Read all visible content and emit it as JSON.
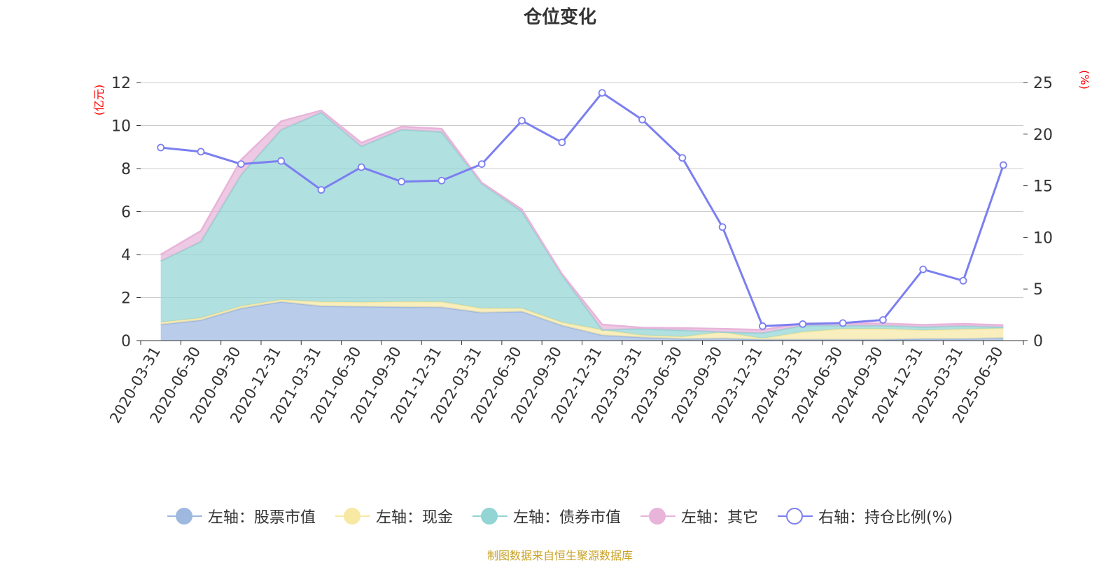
{
  "chart_data": {
    "type": "area",
    "title": "仓位变化",
    "left_axis_unit": "(亿元)",
    "right_axis_unit": "(%)",
    "left_ylim": [
      0,
      12
    ],
    "left_yticks": [
      0,
      2,
      4,
      6,
      8,
      10,
      12
    ],
    "right_ylim": [
      0,
      25
    ],
    "right_yticks": [
      0,
      5,
      10,
      15,
      20,
      25
    ],
    "grid": true,
    "legend_position": "bottom",
    "categories": [
      "2020-03-31",
      "2020-06-30",
      "2020-09-30",
      "2020-12-31",
      "2021-03-31",
      "2021-06-30",
      "2021-09-30",
      "2021-12-31",
      "2022-03-31",
      "2022-06-30",
      "2022-09-30",
      "2022-12-31",
      "2023-03-31",
      "2023-06-30",
      "2023-09-30",
      "2023-12-31",
      "2024-03-31",
      "2024-06-30",
      "2024-09-30",
      "2024-12-31",
      "2025-03-31",
      "2025-06-30"
    ],
    "series": [
      {
        "name": "左轴：股票市值",
        "axis": "left",
        "kind": "stacked-area",
        "color": "#9eb8e0",
        "values": [
          0.75,
          0.95,
          1.5,
          1.8,
          1.6,
          1.58,
          1.56,
          1.55,
          1.3,
          1.35,
          0.7,
          0.25,
          0.15,
          0.08,
          0.1,
          0.05,
          0.05,
          0.05,
          0.05,
          0.08,
          0.08,
          0.12
        ]
      },
      {
        "name": "左轴：现金",
        "axis": "left",
        "kind": "stacked-area",
        "color": "#f7e8a3",
        "values": [
          0.1,
          0.1,
          0.1,
          0.1,
          0.2,
          0.2,
          0.25,
          0.25,
          0.2,
          0.15,
          0.15,
          0.25,
          0.1,
          0.1,
          0.3,
          0.05,
          0.35,
          0.5,
          0.5,
          0.4,
          0.45,
          0.45
        ]
      },
      {
        "name": "左轴：债券市值",
        "axis": "left",
        "kind": "stacked-area",
        "color": "#93d4d4",
        "values": [
          2.85,
          3.55,
          6.1,
          7.9,
          8.8,
          7.25,
          8.0,
          7.9,
          5.8,
          4.5,
          2.2,
          0,
          0.3,
          0.3,
          0,
          0.25,
          0.3,
          0.15,
          0.15,
          0.15,
          0.15,
          0.05
        ]
      },
      {
        "name": "左轴：其它",
        "axis": "left",
        "kind": "stacked-area",
        "color": "#e8b4da",
        "values": [
          0.3,
          0.5,
          0.7,
          0.4,
          0.1,
          0.17,
          0.14,
          0.15,
          0.05,
          0.1,
          0.05,
          0.25,
          0.05,
          0.1,
          0.15,
          0.15,
          0.1,
          0.1,
          0.1,
          0.1,
          0.1,
          0.1
        ]
      },
      {
        "name": "右轴：持仓比例(%)",
        "axis": "right",
        "kind": "line",
        "color": "#7b7ff0",
        "values": [
          18.7,
          18.3,
          17.1,
          17.4,
          14.6,
          16.8,
          15.4,
          15.5,
          17.1,
          21.3,
          19.2,
          24.0,
          21.4,
          17.7,
          11.0,
          1.4,
          1.6,
          1.7,
          2.0,
          6.9,
          5.8,
          17.0
        ]
      }
    ]
  },
  "source_note": "制图数据来自恒生聚源数据库",
  "colors": {
    "axis_unit": "#ff0000",
    "source_note": "#c9a227",
    "grid": "#cccccc",
    "axis_text": "#333333"
  }
}
